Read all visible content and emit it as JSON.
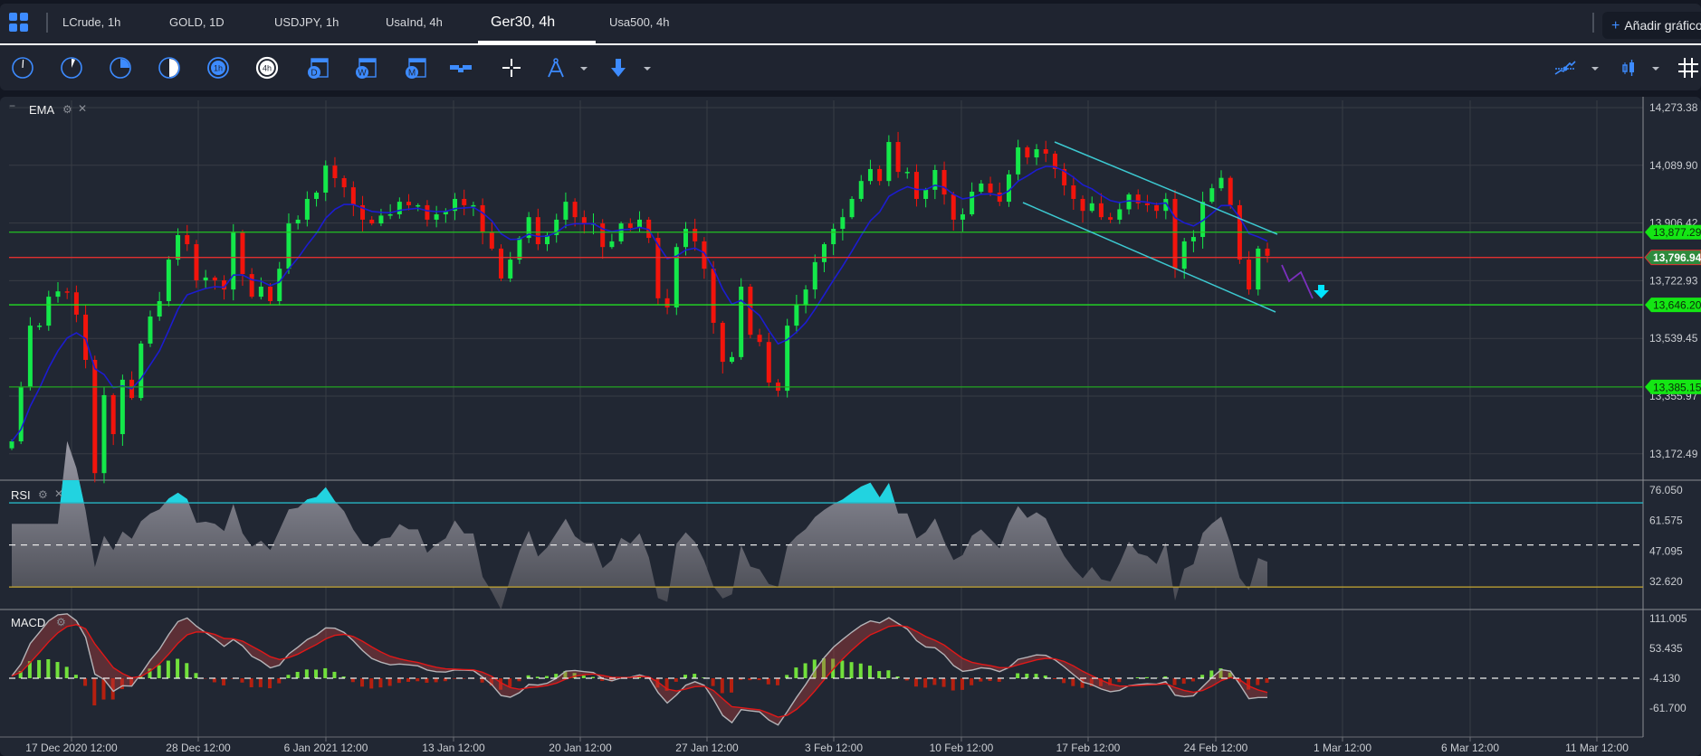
{
  "tabs": [
    {
      "label": "LCrude, 1h"
    },
    {
      "label": "GOLD, 1D"
    },
    {
      "label": "USDJPY, 1h"
    },
    {
      "label": "UsaInd, 4h"
    },
    {
      "label": "Ger30, 4h",
      "active": true
    },
    {
      "label": "Usa500, 4h"
    }
  ],
  "add_chart_label": "Añadir gráfico",
  "toolbar": {
    "timeframe_icons": [
      "clock-1m-icon",
      "clock-5m-icon",
      "clock-15m-icon",
      "clock-30m-icon",
      "1h",
      "4h",
      "D",
      "W",
      "M"
    ],
    "active_timeframe": "4h",
    "tools": [
      "horizontal-line-icon",
      "crosshair-icon",
      "compass-drawing-icon",
      "down-arrow-icon"
    ],
    "right_tools": [
      "indicators-icon",
      "candle-type-icon",
      "grid-icon"
    ]
  },
  "colors": {
    "background": "#212733",
    "bull": "#14e84a",
    "bear": "#f2140c",
    "ema": "#1c1cd0",
    "support": "#22c322",
    "resistance": "#e03030",
    "channel": "#3cc8d0",
    "accent": "#3d8bff"
  },
  "chart_data": {
    "type": "candlestick",
    "indicator_label": "EMA",
    "price_ticks": [
      "14,273.38",
      "14,089.90",
      "13,906.42",
      "13,722.93",
      "13,539.45",
      "13,355.97",
      "13,172.49"
    ],
    "price_tick_values": [
      14273.38,
      14089.9,
      13906.42,
      13722.93,
      13539.45,
      13355.97,
      13172.49
    ],
    "price_levels": [
      {
        "value": 13877.29,
        "label": "13,877.29",
        "color": "#22c322"
      },
      {
        "value": 13796.94,
        "label": "13,796.94",
        "color": "#e03030"
      },
      {
        "value": 13646.2,
        "label": "13,646.20",
        "color": "#22dd22"
      },
      {
        "value": 13385.15,
        "label": "13,385.15",
        "color": "#22a322"
      }
    ],
    "date_labels": [
      "17 Dec 2020 12:00",
      "28 Dec 12:00",
      "6 Jan 2021 12:00",
      "13 Jan 12:00",
      "20 Jan 12:00",
      "27 Jan 12:00",
      "3 Feb 12:00",
      "10 Feb 12:00",
      "17 Feb 12:00",
      "24 Feb 12:00",
      "1 Mar 12:00",
      "6 Mar 12:00",
      "11 Mar 12:00"
    ],
    "first_open": 13190,
    "closes": [
      13212,
      13385,
      13580,
      13580,
      13672,
      13689,
      13686,
      13615,
      13471,
      13111,
      13359,
      13235,
      13408,
      13350,
      13523,
      13609,
      13658,
      13790,
      13868,
      13839,
      13724,
      13733,
      13724,
      13695,
      13876,
      13744,
      13672,
      13704,
      13658,
      13761,
      13905,
      13917,
      13983,
      14003,
      14089,
      14049,
      14020,
      13963,
      13917,
      13905,
      13930,
      13934,
      13974,
      13963,
      13963,
      13917,
      13934,
      13945,
      13983,
      13963,
      13963,
      13876,
      13825,
      13730,
      13790,
      13859,
      13925,
      13839,
      13868,
      13917,
      13974,
      13925,
      13905,
      13905,
      13830,
      13848,
      13905,
      13891,
      13917,
      13859,
      13667,
      13638,
      13830,
      13888,
      13848,
      13761,
      13589,
      13465,
      13480,
      13704,
      13551,
      13528,
      13399,
      13373,
      13580,
      13646,
      13695,
      13782,
      13839,
      13888,
      13925,
      13983,
      14040,
      14078,
      14040,
      14164,
      14069,
      14069,
      13983,
      14012,
      14075,
      13997,
      13917,
      13934,
      14006,
      14032,
      14003,
      13974,
      14061,
      14147,
      14115,
      14141,
      14127,
      14078,
      14026,
      13983,
      13945,
      13969,
      13925,
      13917,
      13950,
      13997,
      13969,
      13963,
      13945,
      13983,
      13761,
      13848,
      13862,
      13974,
      14017,
      14050,
      13963,
      13790,
      13695,
      13825,
      13802
    ],
    "rsi": {
      "label": "RSI",
      "ticks": [
        "76.050",
        "61.575",
        "47.095",
        "32.620"
      ],
      "tick_values": [
        76.05,
        61.575,
        47.095,
        32.62
      ],
      "levels": [
        70,
        50,
        30
      ]
    },
    "macd": {
      "label": "MACD",
      "ticks": [
        "111.005",
        "53.435",
        "-4.130",
        "-61.700"
      ],
      "tick_values": [
        111.005,
        53.435,
        -4.13,
        -61.7
      ],
      "zero_line": -4.13
    }
  }
}
